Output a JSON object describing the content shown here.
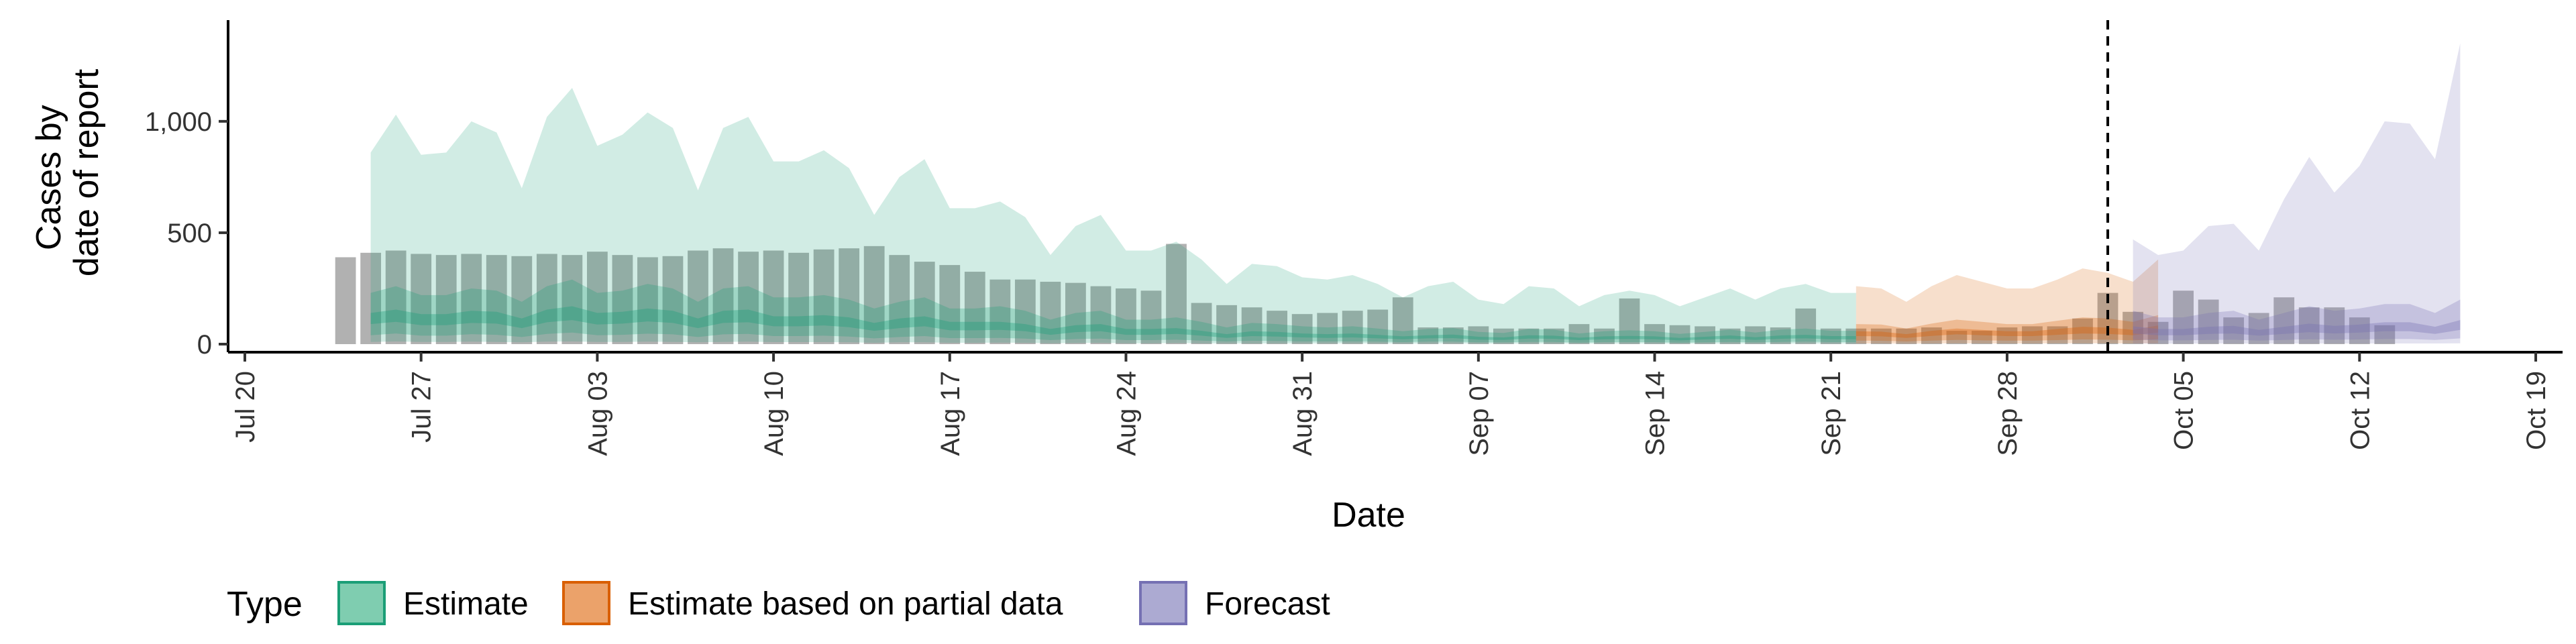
{
  "chart_data": {
    "type": "area",
    "xlabel": "Date",
    "ylabel_lines": [
      "Cases by",
      "date of report"
    ],
    "ylim": [
      0,
      1400
    ],
    "y_ticks": [
      {
        "value": 0,
        "label": "0"
      },
      {
        "value": 500,
        "label": "500"
      },
      {
        "value": 1000,
        "label": "1,000"
      }
    ],
    "x_ticks": [
      {
        "date": "2020-07-20",
        "label": "Jul 20"
      },
      {
        "date": "2020-07-27",
        "label": "Jul 27"
      },
      {
        "date": "2020-08-03",
        "label": "Aug 03"
      },
      {
        "date": "2020-08-10",
        "label": "Aug 10"
      },
      {
        "date": "2020-08-17",
        "label": "Aug 17"
      },
      {
        "date": "2020-08-24",
        "label": "Aug 24"
      },
      {
        "date": "2020-08-31",
        "label": "Aug 31"
      },
      {
        "date": "2020-09-07",
        "label": "Sep 07"
      },
      {
        "date": "2020-09-14",
        "label": "Sep 14"
      },
      {
        "date": "2020-09-21",
        "label": "Sep 21"
      },
      {
        "date": "2020-09-28",
        "label": "Sep 28"
      },
      {
        "date": "2020-10-05",
        "label": "Oct 05"
      },
      {
        "date": "2020-10-12",
        "label": "Oct 12"
      },
      {
        "date": "2020-10-19",
        "label": "Oct 19"
      }
    ],
    "x_range": [
      "2020-07-20",
      "2020-10-19"
    ],
    "vline_date": "2020-10-02",
    "legend": {
      "title": "Type",
      "position": "bottom",
      "entries": [
        {
          "label": "Estimate",
          "fill": "#7fcdb0",
          "stroke": "#1b9e77"
        },
        {
          "label": "Estimate based on partial data",
          "fill": "#eba26a",
          "stroke": "#d95f02"
        },
        {
          "label": "Forecast",
          "fill": "#acaad2",
          "stroke": "#7570b3"
        }
      ]
    },
    "bars": {
      "color": "#9e9e9e",
      "start_date": "2020-07-24",
      "values": [
        390,
        410,
        420,
        405,
        400,
        405,
        400,
        395,
        405,
        400,
        415,
        400,
        390,
        395,
        420,
        430,
        415,
        420,
        410,
        425,
        430,
        440,
        400,
        370,
        355,
        325,
        290,
        290,
        280,
        275,
        260,
        250,
        240,
        450,
        185,
        175,
        165,
        150,
        135,
        140,
        150,
        155,
        210,
        75,
        75,
        80,
        70,
        70,
        70,
        90,
        70,
        205,
        90,
        85,
        80,
        70,
        80,
        75,
        160,
        70,
        70,
        70,
        70,
        75,
        60,
        60,
        75,
        80,
        80,
        115,
        230,
        145,
        100,
        240,
        200,
        120,
        140,
        210,
        165,
        165,
        120,
        85
      ]
    },
    "series": [
      {
        "name": "Estimate",
        "start_date": "2020-07-25",
        "color": "#1b9e77",
        "upper90": [
          860,
          1030,
          850,
          860,
          1000,
          950,
          700,
          1020,
          1150,
          890,
          940,
          1040,
          970,
          690,
          970,
          1020,
          820,
          820,
          870,
          790,
          580,
          750,
          830,
          610,
          610,
          640,
          570,
          400,
          530,
          580,
          420,
          420,
          460,
          380,
          270,
          360,
          350,
          300,
          290,
          310,
          270,
          210,
          260,
          280,
          200,
          180,
          260,
          250,
          170,
          220,
          240,
          220,
          170,
          210,
          250,
          200,
          250,
          270,
          230,
          230
        ],
        "upper50": [
          230,
          260,
          220,
          220,
          250,
          240,
          190,
          260,
          290,
          230,
          240,
          270,
          250,
          190,
          250,
          260,
          210,
          210,
          220,
          200,
          160,
          190,
          210,
          160,
          160,
          170,
          150,
          110,
          140,
          150,
          110,
          110,
          120,
          100,
          75,
          95,
          90,
          80,
          75,
          80,
          70,
          58,
          68,
          72,
          55,
          50,
          68,
          65,
          48,
          58,
          62,
          58,
          46,
          55,
          65,
          52,
          65,
          70,
          60,
          60
        ],
        "upper20": [
          140,
          155,
          135,
          135,
          150,
          145,
          115,
          155,
          170,
          140,
          145,
          160,
          150,
          115,
          150,
          155,
          125,
          125,
          130,
          120,
          95,
          115,
          125,
          100,
          100,
          100,
          90,
          68,
          85,
          90,
          68,
          68,
          72,
          60,
          45,
          58,
          55,
          48,
          45,
          48,
          42,
          35,
          40,
          43,
          33,
          30,
          40,
          38,
          29,
          35,
          37,
          35,
          28,
          33,
          39,
          31,
          39,
          42,
          36,
          36
        ],
        "lower20": [
          90,
          100,
          85,
          85,
          95,
          92,
          72,
          98,
          108,
          88,
          92,
          102,
          95,
          72,
          95,
          98,
          80,
          80,
          84,
          76,
          60,
          72,
          80,
          62,
          62,
          64,
          58,
          42,
          54,
          58,
          42,
          42,
          46,
          38,
          28,
          36,
          34,
          30,
          28,
          30,
          26,
          22,
          26,
          27,
          20,
          19,
          25,
          24,
          18,
          22,
          23,
          22,
          17,
          21,
          24,
          19,
          24,
          26,
          22,
          22
        ],
        "lower50": [
          40,
          48,
          38,
          38,
          45,
          42,
          32,
          46,
          52,
          40,
          42,
          47,
          44,
          32,
          44,
          46,
          36,
          36,
          38,
          34,
          26,
          32,
          36,
          27,
          27,
          28,
          25,
          18,
          23,
          25,
          18,
          18,
          20,
          16,
          12,
          15,
          14,
          12,
          12,
          12,
          11,
          9,
          11,
          11,
          8,
          8,
          10,
          10,
          7,
          9,
          9,
          9,
          7,
          8,
          10,
          8,
          10,
          11,
          9,
          9
        ],
        "lower90": [
          10,
          12,
          10,
          10,
          11,
          10,
          8,
          11,
          12,
          10,
          10,
          11,
          10,
          8,
          10,
          11,
          9,
          9,
          9,
          8,
          6,
          8,
          8,
          6,
          6,
          7,
          6,
          4,
          5,
          6,
          4,
          4,
          5,
          4,
          3,
          3,
          3,
          3,
          3,
          3,
          3,
          2,
          2,
          3,
          2,
          2,
          2,
          2,
          2,
          2,
          2,
          2,
          2,
          2,
          2,
          2,
          2,
          3,
          2,
          2
        ]
      },
      {
        "name": "Estimate based on partial data",
        "start_date": "2020-09-22",
        "color": "#d95f02",
        "upper90": [
          260,
          250,
          190,
          260,
          310,
          280,
          250,
          250,
          290,
          340,
          320,
          280,
          380
        ],
        "upper50": [
          90,
          88,
          70,
          92,
          110,
          100,
          90,
          90,
          105,
          120,
          115,
          100,
          130
        ],
        "upper20": [
          58,
          56,
          45,
          60,
          70,
          64,
          58,
          58,
          68,
          78,
          74,
          64,
          84
        ],
        "lower20": [
          36,
          35,
          28,
          37,
          44,
          40,
          36,
          36,
          42,
          48,
          46,
          40,
          52
        ],
        "lower50": [
          16,
          15,
          12,
          16,
          19,
          17,
          16,
          16,
          18,
          21,
          20,
          17,
          22
        ],
        "lower90": [
          3,
          3,
          2,
          3,
          4,
          3,
          3,
          3,
          4,
          4,
          4,
          3,
          4
        ]
      },
      {
        "name": "Forecast",
        "start_date": "2020-10-03",
        "color": "#7570b3",
        "upper90": [
          470,
          400,
          420,
          530,
          540,
          420,
          650,
          840,
          680,
          800,
          1000,
          990,
          830,
          1350
        ],
        "upper50": [
          150,
          120,
          120,
          140,
          150,
          110,
          140,
          170,
          150,
          160,
          180,
          180,
          140,
          200
        ],
        "upper20": [
          80,
          68,
          68,
          78,
          82,
          64,
          78,
          92,
          82,
          88,
          98,
          98,
          78,
          108
        ],
        "lower20": [
          48,
          40,
          40,
          46,
          48,
          38,
          46,
          54,
          48,
          52,
          58,
          58,
          46,
          64
        ],
        "lower50": [
          20,
          17,
          17,
          19,
          20,
          16,
          19,
          22,
          20,
          21,
          23,
          23,
          19,
          26
        ],
        "lower90": [
          3,
          2,
          2,
          3,
          3,
          2,
          3,
          3,
          3,
          3,
          3,
          3,
          3,
          4
        ]
      }
    ]
  }
}
